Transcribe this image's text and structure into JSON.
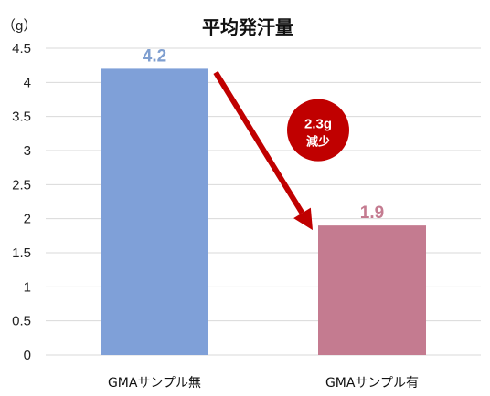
{
  "chart_data": {
    "type": "bar",
    "title": "平均発汗量",
    "unit_label": "（g）",
    "categories": [
      "GMAサンプル無",
      "GMAサンプル有"
    ],
    "values": [
      4.2,
      1.9
    ],
    "value_labels": [
      "4.2",
      "1.9"
    ],
    "ylim": [
      0,
      4.5
    ],
    "yticks": [
      0,
      0.5,
      1,
      1.5,
      2,
      2.5,
      3,
      3.5,
      4,
      4.5
    ],
    "ytick_labels": [
      "0",
      "0.5",
      "1",
      "1.5",
      "2",
      "2.5",
      "3",
      "3.5",
      "4",
      "4.5"
    ],
    "grid": true,
    "colors": {
      "bars": [
        "#7fa0d8",
        "#c47b90"
      ],
      "value_labels": [
        "#7f9fd0",
        "#c47b90"
      ],
      "grid": "#d9d9d9",
      "arrow": "#c00000",
      "callout_fill": "#c00000"
    },
    "annotation": {
      "value_text": "2.3g",
      "label_text": "減少"
    }
  }
}
